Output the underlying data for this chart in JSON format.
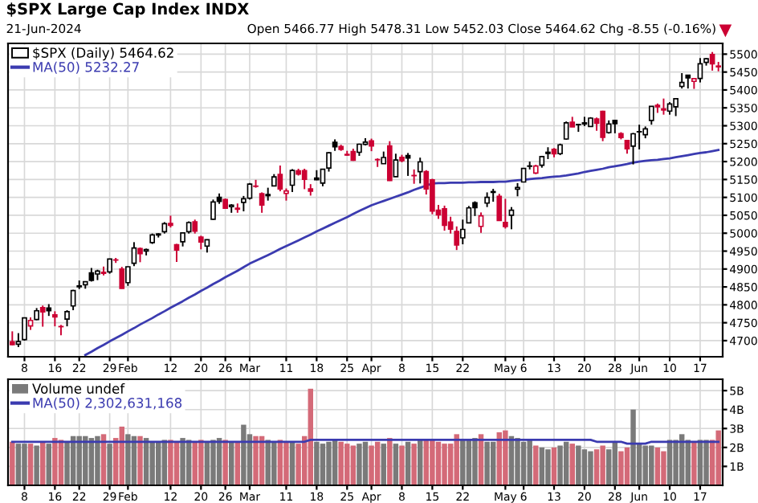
{
  "chart_data": [
    {
      "type": "candlestick",
      "title": "$SPX Large Cap Index INDX",
      "subtitle": "21-Jun-2024",
      "annotations": [
        "Open 5466.77 High 5478.31 Low 5452.03 Close 5464.62 Chg -8.55 (-0.16%)"
      ],
      "categories": [
        null,
        null,
        "8",
        null,
        null,
        null,
        null,
        "16",
        null,
        null,
        null,
        "22",
        null,
        null,
        null,
        null,
        "29",
        null,
        null,
        "Feb",
        null,
        null,
        null,
        null,
        null,
        null,
        "12",
        null,
        null,
        null,
        null,
        "20",
        null,
        null,
        null,
        "26",
        null,
        null,
        null,
        "Mar",
        null,
        null,
        null,
        null,
        null,
        "11",
        null,
        null,
        null,
        null,
        "18",
        null,
        null,
        null,
        null,
        "25",
        null,
        null,
        null,
        "Apr",
        null,
        null,
        null,
        null,
        "8",
        null,
        null,
        null,
        null,
        "15",
        null,
        null,
        null,
        null,
        "22",
        null,
        null,
        null,
        null,
        null,
        null,
        "May",
        null,
        null,
        "6",
        null,
        null,
        null,
        null,
        "13",
        null,
        null,
        null,
        null,
        "20",
        null,
        null,
        null,
        null,
        "28",
        null,
        null,
        null,
        "Jun",
        null,
        null,
        null,
        null,
        "10",
        null,
        null,
        null,
        null,
        "17",
        null,
        null,
        null
      ],
      "ylim": [
        4655,
        5530
      ],
      "yticks": [
        4700,
        4750,
        4800,
        4850,
        4900,
        4950,
        5000,
        5050,
        5100,
        5150,
        5200,
        5250,
        5300,
        5350,
        5400,
        5450,
        5500
      ],
      "grid": true,
      "legend": "top left",
      "series": [
        {
          "name": "$SPX (Daily) 5464.62",
          "colors": [
            "#cc0033",
            "#000000",
            "#000000",
            "#cc0033",
            "#000000",
            "#cc0033",
            "#000000",
            "#cc0033",
            "#cc0033",
            "#000000",
            "#000000",
            "#000000",
            "#000000",
            "#000000",
            "#000000",
            "#cc0033",
            "#000000",
            "#cc0033",
            "#cc0033",
            "#000000",
            "#000000",
            "#cc0033",
            "#000000",
            "#000000",
            "#000000",
            "#000000",
            "#cc0033",
            "#cc0033",
            "#000000",
            "#000000",
            "#cc0033",
            "#cc0033",
            "#000000",
            "#000000",
            "#000000",
            "#cc0033",
            "#000000",
            "#cc0033",
            "#000000",
            "#000000",
            "#cc0033",
            "#cc0033",
            "#000000",
            "#000000",
            "#cc0033",
            "#cc0033",
            "#000000",
            "#cc0033",
            "#cc0033",
            "#cc0033",
            "#000000",
            "#000000",
            "#000000",
            "#000000",
            "#cc0033",
            "#cc0033",
            "#cc0033",
            "#000000",
            "#000000",
            "#cc0033",
            "#cc0033",
            "#000000",
            "#cc0033",
            "#000000",
            "#cc0033",
            "#000000",
            "#cc0033",
            "#000000",
            "#cc0033",
            "#cc0033",
            "#cc0033",
            "#cc0033",
            "#cc0033",
            "#cc0033",
            "#000000",
            "#000000",
            "#000000",
            "#cc0033",
            "#000000",
            "#000000",
            "#cc0033",
            "#cc0033",
            "#000000",
            "#000000",
            "#000000",
            "#000000",
            "#cc0033",
            "#000000",
            "#000000",
            "#cc0033",
            "#000000",
            "#000000",
            "#cc0033",
            "#000000",
            "#000000",
            "#000000",
            "#cc0033",
            "#cc0033",
            "#000000",
            "#000000",
            "#cc0033",
            "#cc0033",
            "#000000",
            "#000000",
            "#000000",
            "#000000",
            "#cc0033",
            "#cc0033",
            "#000000",
            "#000000",
            "#000000",
            "#000000",
            "#cc0033",
            "#000000",
            "#000000",
            "#cc0033",
            "#cc0033"
          ],
          "ohlc": [
            [
              4697,
              4726,
              4687,
              4688.68
            ],
            [
              4690,
              4721,
              4682,
              4697.24
            ],
            [
              4703,
              4764,
              4700,
              4763.54
            ],
            [
              4741,
              4765,
              4730,
              4756.5
            ],
            [
              4759,
              4791,
              4757,
              4783.45
            ],
            [
              4792,
              4798,
              4739,
              4780.24
            ],
            [
              4791,
              4802,
              4769,
              4783.83
            ],
            [
              4772,
              4782,
              4740,
              4765.98
            ],
            [
              4739,
              4744,
              4715,
              4739.21
            ],
            [
              4760,
              4785,
              4740,
              4780.94
            ],
            [
              4797,
              4842,
              4785,
              4839.81
            ],
            [
              4853,
              4868,
              4844,
              4850.43
            ],
            [
              4856,
              4866,
              4845,
              4864.6
            ],
            [
              4889,
              4903,
              4865,
              4868.55
            ],
            [
              4886,
              4898,
              4869,
              4894.16
            ],
            [
              4888,
              4907,
              4882,
              4890.97
            ],
            [
              4892,
              4929,
              4887,
              4927.93
            ],
            [
              4925,
              4931,
              4917,
              4924.97
            ],
            [
              4900,
              4906,
              4845,
              4845.65
            ],
            [
              4862,
              4907,
              4853,
              4906.19
            ],
            [
              4916,
              4975,
              4908,
              4958.61
            ],
            [
              4957,
              4960,
              4919,
              4942.81
            ],
            [
              4950,
              4957,
              4938,
              4954.23
            ],
            [
              4974,
              4999,
              4970,
              4995.06
            ],
            [
              4995,
              5000,
              4988,
              4997.91
            ],
            [
              5004,
              5031,
              4999,
              5026.61
            ],
            [
              5027,
              5049,
              5016,
              5021.84
            ],
            [
              4968,
              4970,
              4920,
              4953.17
            ],
            [
              4976,
              5002,
              4963,
              5000.62
            ],
            [
              5004,
              5033,
              4999,
              5029.73
            ],
            [
              5032,
              5038,
              4999,
              5005.57
            ],
            [
              4989,
              4993,
              4955,
              4975.51
            ],
            [
              4964,
              4983,
              4946,
              4981.8
            ],
            [
              5039,
              5094,
              5038,
              5087.03
            ],
            [
              5100,
              5111,
              5082,
              5088.8
            ],
            [
              5094,
              5097,
              5068,
              5069.53
            ],
            [
              5074,
              5081,
              5057,
              5078.18
            ],
            [
              5067,
              5083,
              5057,
              5069.76
            ],
            [
              5086,
              5104,
              5061,
              5096.27
            ],
            [
              5098,
              5140,
              5094,
              5137.08
            ],
            [
              5131,
              5149,
              5127,
              5130.95
            ],
            [
              5110,
              5114,
              5057,
              5078.65
            ],
            [
              5108,
              5127,
              5091,
              5104.76
            ],
            [
              5132,
              5165,
              5131,
              5157.36
            ],
            [
              5164,
              5189,
              5117,
              5123.69
            ],
            [
              5111,
              5125,
              5091,
              5117.94
            ],
            [
              5134,
              5179,
              5115,
              5175.27
            ],
            [
              5174,
              5180,
              5161,
              5165.31
            ],
            [
              5175,
              5180,
              5123,
              5150.48
            ],
            [
              5124,
              5137,
              5105,
              5117.09
            ],
            [
              5154,
              5176,
              5148,
              5149.42
            ],
            [
              5140,
              5180,
              5131,
              5178.51
            ],
            [
              5182,
              5226,
              5172,
              5224.62
            ],
            [
              5254,
              5262,
              5230,
              5241.53
            ],
            [
              5242,
              5247,
              5230,
              5234.18
            ],
            [
              5220,
              5230,
              5216,
              5218.19
            ],
            [
              5228,
              5236,
              5202,
              5203.58
            ],
            [
              5226,
              5250,
              5216,
              5248.49
            ],
            [
              5248,
              5265,
              5245,
              5254.35
            ],
            [
              5258,
              5264,
              5229,
              5243.77
            ],
            [
              5205,
              5209,
              5185,
              5205.81
            ],
            [
              5194,
              5228,
              5194,
              5211.49
            ],
            [
              5244,
              5257,
              5146,
              5147.21
            ],
            [
              5158,
              5222,
              5157,
              5204.34
            ],
            [
              5212,
              5219,
              5198,
              5202.39
            ],
            [
              5217,
              5224,
              5160,
              5209.91
            ],
            [
              5161,
              5178,
              5138,
              5160.64
            ],
            [
              5172,
              5211,
              5139,
              5199.06
            ],
            [
              5172,
              5176,
              5108,
              5123.41
            ],
            [
              5149,
              5152,
              5053,
              5061.82
            ],
            [
              5064,
              5079,
              5040,
              5051.41
            ],
            [
              5068,
              5077,
              5007,
              5022.21
            ],
            [
              5031,
              5046,
              4999,
              5011.12
            ],
            [
              5005,
              5019,
              4953,
              4967.23
            ],
            [
              4987,
              5038,
              4969,
              5010.6
            ],
            [
              5029,
              5076,
              5028,
              5070.55
            ],
            [
              5085,
              5089,
              5048,
              5071.63
            ],
            [
              5019,
              5058,
              5001,
              5048.42
            ],
            [
              5084,
              5114,
              5073,
              5099.96
            ],
            [
              5114,
              5124,
              5088,
              5116.17
            ],
            [
              5103,
              5110,
              5035,
              5035.69
            ],
            [
              5030,
              5096,
              5013,
              5018.39
            ],
            [
              5050,
              5073,
              5011,
              5064.2
            ],
            [
              5123,
              5140,
              5103,
              5127.79
            ],
            [
              5143,
              5181,
              5142,
              5180.74
            ],
            [
              5187,
              5200,
              5178,
              5187.7
            ],
            [
              5168,
              5191,
              5165,
              5187.67
            ],
            [
              5190,
              5216,
              5183,
              5214.08
            ],
            [
              5226,
              5240,
              5207,
              5222.68
            ],
            [
              5234,
              5238,
              5212,
              5221.42
            ],
            [
              5222,
              5250,
              5218,
              5246.68
            ],
            [
              5263,
              5312,
              5261,
              5308.15
            ],
            [
              5310,
              5325,
              5297,
              5297.1
            ],
            [
              5303,
              5305,
              5283,
              5303.27
            ],
            [
              5305,
              5325,
              5299,
              5308.13
            ],
            [
              5298,
              5324,
              5297,
              5321.41
            ],
            [
              5319,
              5323,
              5286,
              5307.01
            ],
            [
              5340,
              5342,
              5257,
              5267.84
            ],
            [
              5281,
              5315,
              5278,
              5304.72
            ],
            [
              5315,
              5315,
              5279,
              5306.04
            ],
            [
              5278,
              5282,
              5262,
              5266.95
            ],
            [
              5259,
              5260,
              5222,
              5235.48
            ],
            [
              5243,
              5280,
              5192,
              5277.51
            ],
            [
              5283,
              5303,
              5234,
              5283.4
            ],
            [
              5275,
              5298,
              5265,
              5291.34
            ],
            [
              5315,
              5355,
              5303,
              5354.03
            ],
            [
              5357,
              5362,
              5336,
              5352.96
            ],
            [
              5344,
              5376,
              5331,
              5346.99
            ],
            [
              5341,
              5366,
              5331,
              5360.79
            ],
            [
              5353,
              5376,
              5327,
              5375.32
            ],
            [
              5410,
              5447,
              5404,
              5421.03
            ],
            [
              5441,
              5442,
              5404,
              5433.74
            ],
            [
              5424,
              5433,
              5403,
              5431.6
            ],
            [
              5432,
              5489,
              5421,
              5473.23
            ],
            [
              5477,
              5489,
              5468,
              5487.03
            ],
            [
              5499,
              5506,
              5454,
              5473.17
            ],
            [
              5466.77,
              5478.31,
              5452.03,
              5464.62
            ]
          ]
        },
        {
          "name": "MA(50) 5232.27",
          "type": "line",
          "color": "#3b3bb0",
          "values": [
            null,
            null,
            null,
            null,
            null,
            null,
            null,
            null,
            null,
            null,
            null,
            null,
            4660,
            4669,
            4679,
            4688,
            4698,
            4707,
            4716,
            4726,
            4735,
            4745,
            4754,
            4763,
            4773,
            4782,
            4792,
            4801,
            4810,
            4820,
            4829,
            4839,
            4848,
            4858,
            4867,
            4877,
            4886,
            4895,
            4905,
            4915,
            4923,
            4931,
            4939,
            4947,
            4956,
            4964,
            4972,
            4980,
            4988,
            4996,
            5005,
            5013,
            5021,
            5029,
            5037,
            5045,
            5054,
            5062,
            5070,
            5078,
            5084,
            5090,
            5096,
            5102,
            5108,
            5114,
            5121,
            5127,
            5133,
            5139,
            5140,
            5140,
            5141,
            5141,
            5141,
            5142,
            5142,
            5143,
            5143,
            5143,
            5144,
            5144,
            5146,
            5148,
            5149,
            5151,
            5153,
            5154,
            5156,
            5158,
            5159,
            5161,
            5164,
            5167,
            5171,
            5174,
            5177,
            5180,
            5184,
            5187,
            5190,
            5193,
            5197,
            5200,
            5202,
            5204,
            5205,
            5207,
            5209,
            5212,
            5215,
            5218,
            5221,
            5224,
            5226,
            5229,
            5232.27
          ]
        }
      ]
    },
    {
      "type": "bar",
      "categories": [
        null,
        null,
        "8",
        null,
        null,
        null,
        null,
        "16",
        null,
        null,
        null,
        "22",
        null,
        null,
        null,
        null,
        "29",
        null,
        null,
        "Feb",
        null,
        null,
        null,
        null,
        null,
        null,
        "12",
        null,
        null,
        null,
        null,
        "20",
        null,
        null,
        null,
        "26",
        null,
        null,
        null,
        "Mar",
        null,
        null,
        null,
        null,
        null,
        "11",
        null,
        null,
        null,
        null,
        "18",
        null,
        null,
        null,
        null,
        "25",
        null,
        null,
        null,
        "Apr",
        null,
        null,
        null,
        null,
        "8",
        null,
        null,
        null,
        null,
        "15",
        null,
        null,
        null,
        null,
        "22",
        null,
        null,
        null,
        null,
        null,
        null,
        "May",
        null,
        null,
        "6",
        null,
        null,
        null,
        null,
        "13",
        null,
        null,
        null,
        null,
        "20",
        null,
        null,
        null,
        null,
        "28",
        null,
        null,
        null,
        "Jun",
        null,
        null,
        null,
        null,
        "10",
        null,
        null,
        null,
        null,
        "17",
        null,
        null,
        null
      ],
      "ylim": [
        0,
        5.6
      ],
      "yticks": [
        {
          "value": 1,
          "label": "1B"
        },
        {
          "value": 2,
          "label": "2B"
        },
        {
          "value": 3,
          "label": "3B"
        },
        {
          "value": 4,
          "label": "4B"
        },
        {
          "value": 5,
          "label": "5B"
        }
      ],
      "grid": true,
      "legend": "top left",
      "series": [
        {
          "name": "Volume undef",
          "colors": [
            "#d46a78",
            "#7a7a7a",
            "#7a7a7a",
            "#d46a78",
            "#7a7a7a",
            "#d46a78",
            "#7a7a7a",
            "#d46a78",
            "#d46a78",
            "#7a7a7a",
            "#7a7a7a",
            "#7a7a7a",
            "#7a7a7a",
            "#7a7a7a",
            "#7a7a7a",
            "#d46a78",
            "#7a7a7a",
            "#d46a78",
            "#d46a78",
            "#7a7a7a",
            "#7a7a7a",
            "#d46a78",
            "#7a7a7a",
            "#7a7a7a",
            "#7a7a7a",
            "#7a7a7a",
            "#d46a78",
            "#d46a78",
            "#7a7a7a",
            "#7a7a7a",
            "#d46a78",
            "#d46a78",
            "#7a7a7a",
            "#7a7a7a",
            "#7a7a7a",
            "#d46a78",
            "#7a7a7a",
            "#d46a78",
            "#7a7a7a",
            "#7a7a7a",
            "#d46a78",
            "#d46a78",
            "#7a7a7a",
            "#7a7a7a",
            "#d46a78",
            "#d46a78",
            "#7a7a7a",
            "#d46a78",
            "#d46a78",
            "#d46a78",
            "#7a7a7a",
            "#7a7a7a",
            "#7a7a7a",
            "#7a7a7a",
            "#d46a78",
            "#d46a78",
            "#d46a78",
            "#7a7a7a",
            "#7a7a7a",
            "#d46a78",
            "#d46a78",
            "#7a7a7a",
            "#d46a78",
            "#7a7a7a",
            "#d46a78",
            "#7a7a7a",
            "#d46a78",
            "#7a7a7a",
            "#d46a78",
            "#d46a78",
            "#d46a78",
            "#d46a78",
            "#d46a78",
            "#d46a78",
            "#7a7a7a",
            "#7a7a7a",
            "#7a7a7a",
            "#d46a78",
            "#7a7a7a",
            "#7a7a7a",
            "#d46a78",
            "#d46a78",
            "#7a7a7a",
            "#7a7a7a",
            "#7a7a7a",
            "#7a7a7a",
            "#d46a78",
            "#7a7a7a",
            "#7a7a7a",
            "#d46a78",
            "#7a7a7a",
            "#7a7a7a",
            "#d46a78",
            "#7a7a7a",
            "#7a7a7a",
            "#7a7a7a",
            "#d46a78",
            "#d46a78",
            "#7a7a7a",
            "#7a7a7a",
            "#d46a78",
            "#d46a78",
            "#7a7a7a",
            "#7a7a7a",
            "#7a7a7a",
            "#7a7a7a",
            "#d46a78",
            "#d46a78",
            "#7a7a7a",
            "#7a7a7a",
            "#7a7a7a",
            "#7a7a7a",
            "#d46a78",
            "#7a7a7a",
            "#7a7a7a",
            "#d46a78",
            "#d46a78"
          ],
          "values": [
            2.3,
            2.2,
            2.2,
            2.2,
            2.1,
            2.3,
            2.2,
            2.5,
            2.4,
            2.3,
            2.6,
            2.6,
            2.6,
            2.5,
            2.6,
            2.7,
            2.2,
            2.5,
            3.1,
            2.7,
            2.6,
            2.6,
            2.5,
            2.3,
            2.3,
            2.4,
            2.4,
            2.3,
            2.5,
            2.4,
            2.3,
            2.4,
            2.3,
            2.4,
            2.5,
            2.4,
            2.3,
            2.3,
            3.2,
            2.7,
            2.6,
            2.6,
            2.4,
            2.3,
            2.4,
            2.3,
            2.3,
            2.2,
            2.6,
            5.1,
            2.3,
            2.2,
            2.3,
            2.4,
            2.3,
            2.2,
            2.1,
            2.2,
            2.3,
            2.1,
            2.3,
            2.2,
            2.5,
            2.2,
            2.1,
            2.3,
            2.2,
            2.4,
            2.4,
            2.4,
            2.3,
            2.2,
            2.2,
            2.7,
            2.4,
            2.4,
            2.5,
            2.7,
            2.3,
            2.3,
            2.8,
            2.9,
            2.6,
            2.5,
            2.3,
            2.4,
            2.1,
            2.0,
            1.9,
            2.0,
            2.1,
            2.3,
            2.2,
            2.1,
            1.9,
            1.8,
            1.9,
            2.1,
            1.9,
            2.3,
            1.8,
            2.0,
            4.0,
            2.2,
            2.1,
            2.1,
            2.0,
            1.8,
            2.4,
            2.4,
            2.7,
            2.4,
            2.3,
            2.4,
            2.4,
            2.4,
            2.9
          ]
        },
        {
          "name": "MA(50) 2,302,631,168",
          "type": "line",
          "color": "#3b3bb0",
          "values": [
            2.3,
            2.3,
            2.3,
            2.3,
            2.3,
            2.3,
            2.3,
            2.3,
            2.3,
            2.3,
            2.3,
            2.3,
            2.3,
            2.3,
            2.3,
            2.3,
            2.3,
            2.3,
            2.3,
            2.3,
            2.3,
            2.3,
            2.3,
            2.3,
            2.3,
            2.3,
            2.3,
            2.3,
            2.3,
            2.3,
            2.3,
            2.3,
            2.3,
            2.3,
            2.3,
            2.3,
            2.3,
            2.3,
            2.3,
            2.3,
            2.3,
            2.3,
            2.3,
            2.3,
            2.3,
            2.3,
            2.3,
            2.3,
            2.3,
            2.4,
            2.4,
            2.4,
            2.4,
            2.4,
            2.4,
            2.4,
            2.4,
            2.4,
            2.4,
            2.4,
            2.4,
            2.4,
            2.4,
            2.4,
            2.4,
            2.4,
            2.4,
            2.4,
            2.4,
            2.4,
            2.4,
            2.4,
            2.4,
            2.4,
            2.4,
            2.4,
            2.4,
            2.4,
            2.4,
            2.4,
            2.4,
            2.4,
            2.4,
            2.4,
            2.4,
            2.4,
            2.4,
            2.4,
            2.4,
            2.4,
            2.4,
            2.4,
            2.4,
            2.4,
            2.4,
            2.4,
            2.3,
            2.3,
            2.3,
            2.3,
            2.3,
            2.2,
            2.2,
            2.2,
            2.2,
            2.3,
            2.3,
            2.3,
            2.3,
            2.3,
            2.3,
            2.3,
            2.3,
            2.3,
            2.3,
            2.3,
            2.3
          ]
        }
      ]
    }
  ]
}
